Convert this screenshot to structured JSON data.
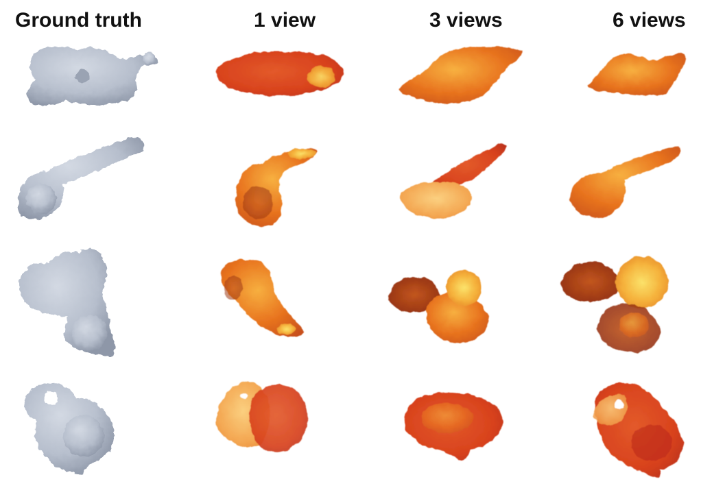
{
  "columns": [
    {
      "label": "Ground truth",
      "style": "grey-surface"
    },
    {
      "label": "1 view",
      "style": "orange-density"
    },
    {
      "label": "3 views",
      "style": "orange-density"
    },
    {
      "label": "6 views",
      "style": "orange-density"
    }
  ],
  "rows": 4,
  "colors": {
    "ground_truth": "#b7bfcd",
    "ground_truth_shade": "#8e97a8",
    "orange": "#e8741f",
    "orange_light": "#f5a53a",
    "yellow": "#f7d34a",
    "red": "#c8301a",
    "dark_red": "#9a2d12"
  }
}
